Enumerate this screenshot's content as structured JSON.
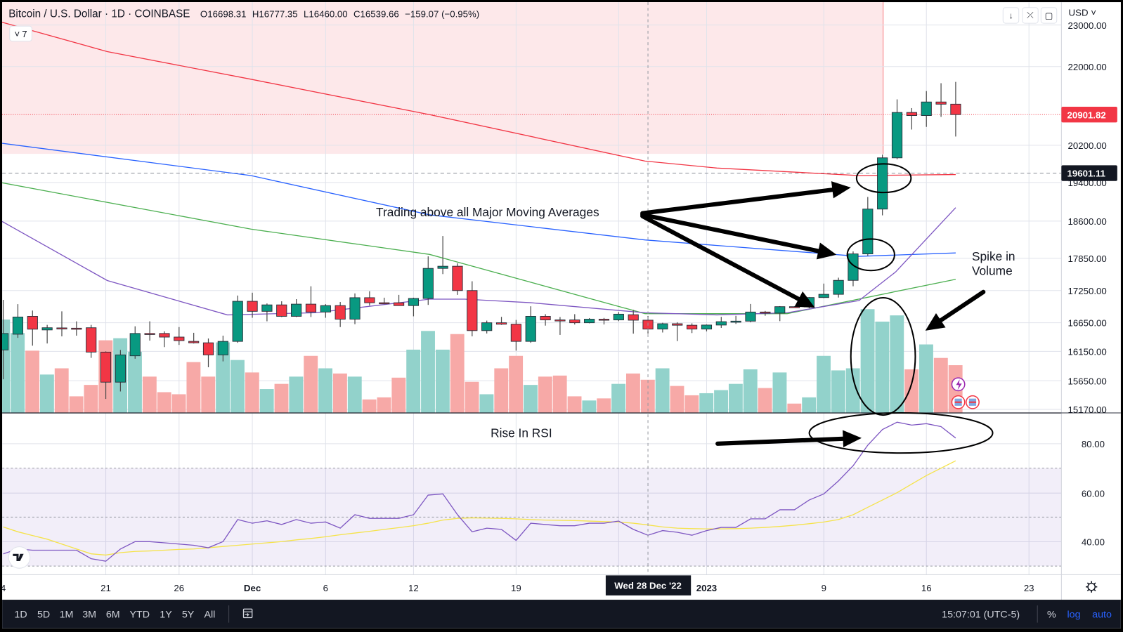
{
  "header": {
    "symbol": "Bitcoin / U.S. Dollar · 1D · COINBASE",
    "open": "O16698.31",
    "high": "H16777.35",
    "low": "L16460.00",
    "close": "C16539.66",
    "change": "−159.07 (−0.95%)"
  },
  "indicator_toggle": {
    "chevron": "˅",
    "count": "7"
  },
  "top_buttons": {
    "download": "↓",
    "collapse": "⤫",
    "fullscreen": "▢"
  },
  "currency": "USD ˅",
  "price_labels": {
    "last_price": "20901.82",
    "marker_price": "19601.11"
  },
  "annotations": {
    "moving_averages": "Trading above all Major Moving Averages",
    "volume_line1": "Spike in",
    "volume_line2": "Volume",
    "rsi": "Rise In RSI"
  },
  "crosshair_label": "Wed 28 Dec '22",
  "toolbar": {
    "ranges": [
      "1D",
      "5D",
      "1M",
      "3M",
      "6M",
      "YTD",
      "1Y",
      "5Y",
      "All"
    ],
    "time": "15:07:01 (UTC-5)",
    "percent": "%",
    "log": "log",
    "auto": "auto"
  },
  "colors": {
    "up": "#089981",
    "down": "#f23645",
    "volume_up": "#92d2cb",
    "volume_down": "#f7a9a7",
    "ma_200": "#f23645",
    "ma_100": "#2962ff",
    "ma_50": "#4caf50",
    "ma_20": "#7e57c2",
    "rsi": "#7e57c2",
    "rsi_ma": "#f5e34a",
    "zone": "#fde8ea"
  },
  "chart_data": {
    "type": "candlestick",
    "title": "Bitcoin / U.S. Dollar · 1D · COINBASE",
    "start_date": "2022-11-14",
    "interval": "1D",
    "ohlc_fields": [
      "open",
      "high",
      "low",
      "close"
    ],
    "ohlc": [
      [
        16175,
        17077,
        15674,
        16463
      ],
      [
        16450,
        16997,
        16387,
        16757
      ],
      [
        16770,
        16877,
        16250,
        16538
      ],
      [
        16525,
        16613,
        16288,
        16563
      ],
      [
        16560,
        16863,
        16413,
        16555
      ],
      [
        16555,
        16677,
        16425,
        16550
      ],
      [
        16563,
        16613,
        16040,
        16138
      ],
      [
        16138,
        16150,
        15345,
        15626
      ],
      [
        15626,
        16175,
        15470,
        16090
      ],
      [
        16075,
        16588,
        16025,
        16463
      ],
      [
        16463,
        16677,
        16338,
        16460
      ],
      [
        16463,
        16500,
        16225,
        16400
      ],
      [
        16400,
        16575,
        16263,
        16338
      ],
      [
        16325,
        16475,
        16288,
        16300
      ],
      [
        16300,
        16375,
        15880,
        16090
      ],
      [
        16090,
        16425,
        15980,
        16325
      ],
      [
        16325,
        17157,
        16300,
        17050
      ],
      [
        17050,
        17210,
        16743,
        16863
      ],
      [
        16863,
        17010,
        16677,
        16983
      ],
      [
        16983,
        17050,
        16757,
        16770
      ],
      [
        16770,
        17090,
        16757,
        16997
      ],
      [
        16997,
        17330,
        16757,
        16850
      ],
      [
        16850,
        16997,
        16743,
        16970
      ],
      [
        16970,
        17037,
        16575,
        16717
      ],
      [
        16717,
        17197,
        16625,
        17117
      ],
      [
        17117,
        17237,
        16970,
        17023
      ],
      [
        17023,
        17117,
        16997,
        17020
      ],
      [
        17023,
        17170,
        16970,
        16970
      ],
      [
        16970,
        17117,
        16770,
        17103
      ],
      [
        17103,
        17890,
        16983,
        17663
      ],
      [
        17663,
        18300,
        17557,
        17703
      ],
      [
        17703,
        17757,
        17170,
        17250
      ],
      [
        17250,
        17423,
        16413,
        16513
      ],
      [
        16513,
        16690,
        16463,
        16650
      ],
      [
        16650,
        16760,
        16613,
        16625
      ],
      [
        16625,
        16703,
        16163,
        16325
      ],
      [
        16325,
        16957,
        16300,
        16770
      ],
      [
        16770,
        16810,
        16600,
        16703
      ],
      [
        16703,
        16757,
        16438,
        16700
      ],
      [
        16703,
        16810,
        16620,
        16650
      ],
      [
        16650,
        16737,
        16640,
        16717
      ],
      [
        16717,
        16740,
        16620,
        16715
      ],
      [
        16703,
        16850,
        16680,
        16810
      ],
      [
        16800,
        16890,
        16460,
        16698
      ],
      [
        16698.31,
        16777.35,
        16460,
        16539.66
      ],
      [
        16540,
        16650,
        16480,
        16633
      ],
      [
        16633,
        16660,
        16330,
        16607
      ],
      [
        16607,
        16640,
        16470,
        16540
      ],
      [
        16540,
        16620,
        16500,
        16610
      ],
      [
        16610,
        16760,
        16560,
        16670
      ],
      [
        16670,
        16780,
        16630,
        16680
      ],
      [
        16680,
        17000,
        16660,
        16850
      ],
      [
        16850,
        16870,
        16780,
        16830
      ],
      [
        16830,
        16960,
        16680,
        16950
      ],
      [
        16950,
        16960,
        16930,
        16945
      ],
      [
        16945,
        17130,
        16920,
        17120
      ],
      [
        17120,
        17380,
        17110,
        17180
      ],
      [
        17180,
        17490,
        17120,
        17440
      ],
      [
        17440,
        17990,
        17330,
        17940
      ],
      [
        17940,
        19100,
        17900,
        18850
      ],
      [
        18850,
        20000,
        18720,
        19930
      ],
      [
        19930,
        21250,
        19900,
        20950
      ],
      [
        20950,
        21050,
        20560,
        20880
      ],
      [
        20880,
        21440,
        20620,
        21190
      ],
      [
        21190,
        21620,
        20850,
        21140
      ],
      [
        21140,
        21650,
        20400,
        20902
      ]
    ],
    "volume_relative": [
      90,
      77,
      60,
      37,
      43,
      16,
      27,
      70,
      72,
      59,
      35,
      20,
      18,
      49,
      35,
      68,
      51,
      39,
      23,
      28,
      35,
      55,
      43,
      38,
      35,
      13,
      15,
      34,
      61,
      79,
      61,
      76,
      30,
      18,
      43,
      55,
      27,
      35,
      36,
      16,
      12,
      14,
      28,
      38,
      32,
      43,
      26,
      17,
      19,
      22,
      28,
      42,
      24,
      39,
      9,
      15,
      55,
      41,
      43,
      100,
      88,
      94,
      42,
      66,
      53,
      46
    ],
    "moving_averages": [
      {
        "name": "MA 200",
        "color": "#f23645",
        "points": [
          [
            -0.2,
            23080
          ],
          [
            7.1,
            22360
          ],
          [
            16.9,
            21710
          ],
          [
            29.1,
            20900
          ],
          [
            43.8,
            19860
          ],
          [
            48.7,
            19710
          ],
          [
            58.4,
            19550
          ],
          [
            65,
            19570
          ]
        ]
      },
      {
        "name": "MA 100",
        "color": "#2962ff",
        "points": [
          [
            -0.2,
            20250
          ],
          [
            16.9,
            19550
          ],
          [
            29.1,
            18730
          ],
          [
            43.8,
            18220
          ],
          [
            58.4,
            17890
          ],
          [
            65,
            17960
          ]
        ]
      },
      {
        "name": "MA 50",
        "color": "#4caf50",
        "points": [
          [
            -0.2,
            19400
          ],
          [
            16.9,
            18440
          ],
          [
            29.1,
            17930
          ],
          [
            43.8,
            16820
          ],
          [
            53.5,
            16820
          ],
          [
            65,
            17460
          ]
        ]
      },
      {
        "name": "MA 20",
        "color": "#7e57c2",
        "points": [
          [
            -0.2,
            18615
          ],
          [
            7.1,
            17437
          ],
          [
            15.3,
            16797
          ],
          [
            21.3,
            16837
          ],
          [
            29.1,
            17090
          ],
          [
            31.5,
            17090
          ],
          [
            36,
            17023
          ],
          [
            43.8,
            16837
          ],
          [
            48.7,
            16797
          ],
          [
            53.5,
            16837
          ],
          [
            58.4,
            17063
          ],
          [
            60.9,
            17597
          ],
          [
            65,
            18880
          ]
        ]
      }
    ],
    "price_ticks": [
      "23000.00",
      "22000.00",
      "20200.00",
      "19400.00",
      "18600.00",
      "17850.00",
      "17250.00",
      "16650.00",
      "16150.00",
      "15650.00",
      "15170.00"
    ],
    "rsi": {
      "values": [
        35,
        37,
        36.5,
        36.5,
        36.5,
        36.5,
        33,
        32,
        37,
        40,
        40,
        39.5,
        39,
        38.5,
        37.5,
        40,
        49,
        47.5,
        48.5,
        47,
        49,
        47.5,
        48,
        45.5,
        51,
        49.5,
        49.5,
        49.5,
        51,
        59,
        59.5,
        51,
        44,
        45.5,
        45,
        40.5,
        47.5,
        47,
        46.5,
        46.5,
        47.5,
        47.5,
        48.4,
        45,
        42.6,
        44.5,
        43.8,
        42.6,
        44.5,
        45.8,
        45.8,
        49.3,
        49.3,
        53,
        53,
        57,
        59.5,
        64.8,
        71,
        79.4,
        85.8,
        88.8,
        87.6,
        88.2,
        87,
        82.3
      ],
      "ma": [
        46,
        44,
        42.5,
        41,
        39,
        37,
        35,
        34.5,
        35.5,
        36,
        36.2,
        36.5,
        36.8,
        37,
        37.5,
        38,
        38.5,
        39,
        39.5,
        40,
        40.7,
        41.3,
        42,
        42.8,
        43.5,
        44.2,
        45,
        45.7,
        46.5,
        47.5,
        48.8,
        49.5,
        49.7,
        49.6,
        49.5,
        49.3,
        49,
        48.8,
        48.7,
        48.6,
        48.4,
        48.2,
        48,
        47.5,
        46.8,
        46,
        45.5,
        45.3,
        45.2,
        45.2,
        45.3,
        45.5,
        45.8,
        46.2,
        46.7,
        47.3,
        48,
        49,
        51,
        54,
        57,
        60,
        63.5,
        67,
        70,
        73
      ],
      "levels": [
        70,
        50,
        30
      ],
      "ticks": [
        "80.00",
        "60.00",
        "40.00"
      ]
    },
    "x_ticks": [
      {
        "label": "4",
        "date": "2022-11-14"
      },
      {
        "label": "21",
        "date": "2022-11-21"
      },
      {
        "label": "26",
        "date": "2022-11-26"
      },
      {
        "label": "Dec",
        "date": "2022-12-01"
      },
      {
        "label": "6",
        "date": "2022-12-06"
      },
      {
        "label": "12",
        "date": "2022-12-12"
      },
      {
        "label": "19",
        "date": "2022-12-19"
      },
      {
        "label": "2023",
        "date": "2023-01-01"
      },
      {
        "label": "9",
        "date": "2023-01-09"
      },
      {
        "label": "16",
        "date": "2023-01-16"
      },
      {
        "label": "23",
        "date": "2023-01-23"
      }
    ],
    "crosshair_date": "2022-12-28",
    "last_price": 20901.82,
    "marker_price": 19601.11,
    "zone_end_date": "2023-01-13"
  }
}
